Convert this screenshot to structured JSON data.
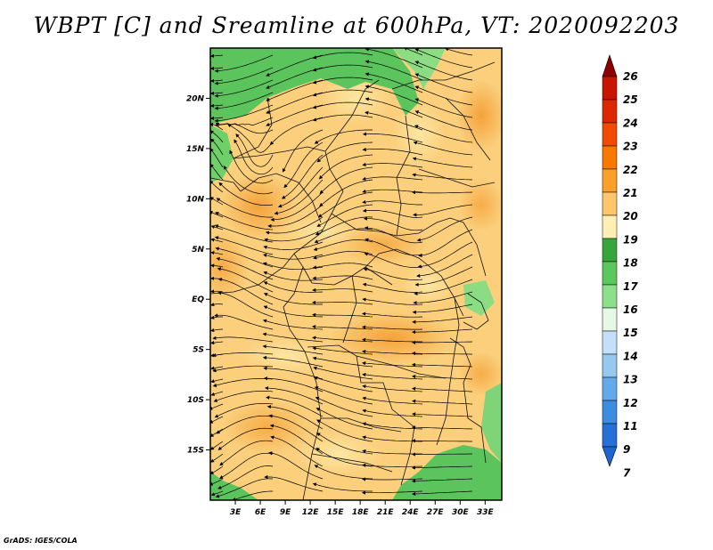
{
  "title": "WBPT [C] and Sreamline at 600hPa, VT: 2020092203",
  "credit": "GrADS: IGES/COLA",
  "map": {
    "lat_range": [
      -20,
      25
    ],
    "lon_range": [
      0,
      35
    ],
    "lat_ticks": [
      {
        "label": "20N",
        "value": 20
      },
      {
        "label": "15N",
        "value": 15
      },
      {
        "label": "10N",
        "value": 10
      },
      {
        "label": "5N",
        "value": 5
      },
      {
        "label": "EQ",
        "value": 0
      },
      {
        "label": "5S",
        "value": -5
      },
      {
        "label": "10S",
        "value": -10
      },
      {
        "label": "15S",
        "value": -15
      }
    ],
    "lon_ticks": [
      {
        "label": "3E",
        "value": 3
      },
      {
        "label": "6E",
        "value": 6
      },
      {
        "label": "9E",
        "value": 9
      },
      {
        "label": "12E",
        "value": 12
      },
      {
        "label": "15E",
        "value": 15
      },
      {
        "label": "18E",
        "value": 18
      },
      {
        "label": "21E",
        "value": 21
      },
      {
        "label": "24E",
        "value": 24
      },
      {
        "label": "27E",
        "value": 27
      },
      {
        "label": "30E",
        "value": 30
      },
      {
        "label": "33E",
        "value": 33
      }
    ],
    "field": "wet-bulb potential temperature shaded with streamlines"
  },
  "colorbar": {
    "levels": [
      "26",
      "25",
      "24",
      "23",
      "22",
      "21",
      "20",
      "19",
      "18",
      "17",
      "16",
      "15",
      "14",
      "13",
      "12",
      "11",
      "9",
      "7"
    ],
    "colors": [
      "#a50000",
      "#c81400",
      "#dc2800",
      "#f04b00",
      "#f87800",
      "#fca02c",
      "#fdc66a",
      "#fef0b4",
      "#37a53c",
      "#5ac85a",
      "#8ce08c",
      "#e6f8e6",
      "#c4e0f8",
      "#96c8f0",
      "#64aaea",
      "#3c8ce0",
      "#2870d8",
      "#1e5ac8"
    ],
    "top_arrow_color": "#8b0000",
    "bottom_arrow_color": "#1e64d2"
  }
}
